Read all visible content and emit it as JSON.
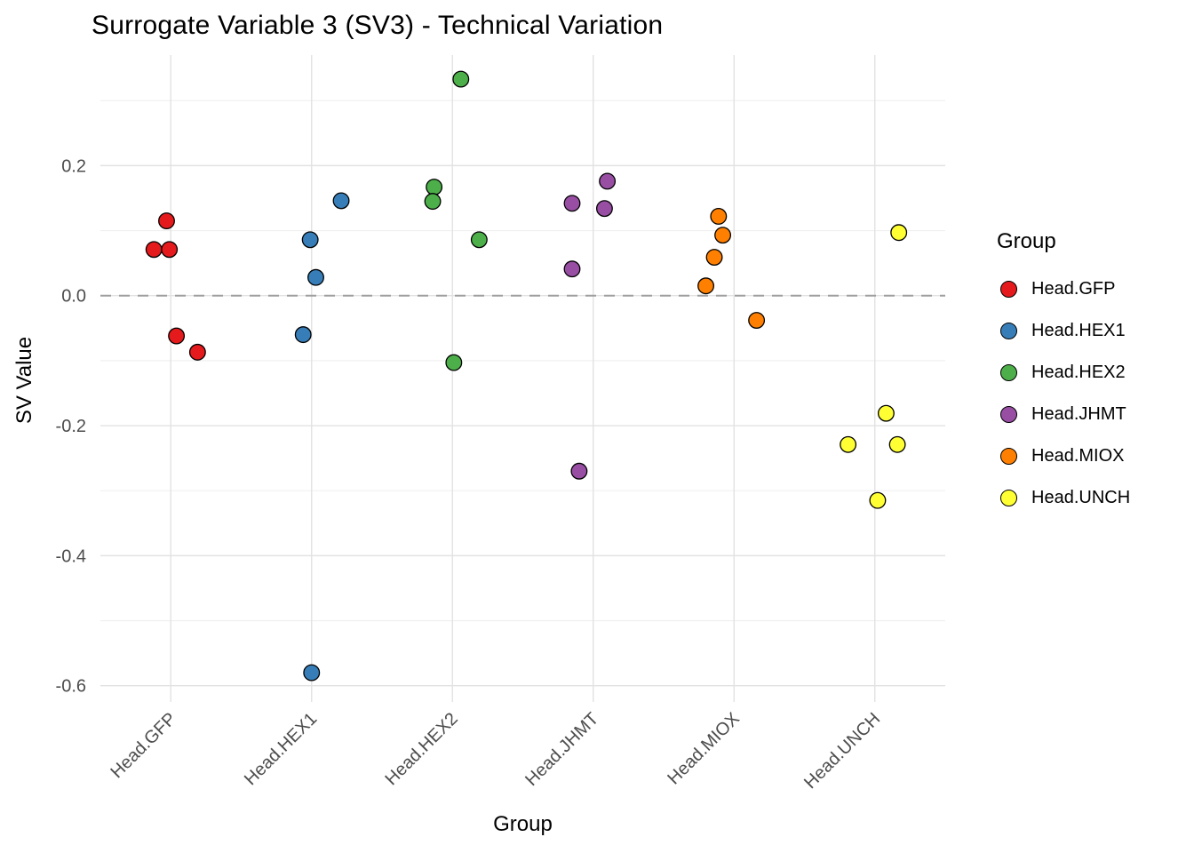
{
  "chart_data": {
    "type": "scatter",
    "title": "Surrogate Variable 3 (SV3) - Technical Variation",
    "xlabel": "Group",
    "ylabel": "SV Value",
    "legend_title": "Group",
    "legend_position": "right",
    "grid": true,
    "categories": [
      "Head.GFP",
      "Head.HEX1",
      "Head.HEX2",
      "Head.JHMT",
      "Head.MIOX",
      "Head.UNCH"
    ],
    "y_ticks": [
      0.2,
      0.0,
      -0.2,
      -0.4,
      -0.6
    ],
    "y_tick_labels": [
      "0.2",
      "0.0",
      "-0.2",
      "-0.4",
      "-0.6"
    ],
    "y_minor_ticks": [
      0.3,
      0.1,
      -0.1,
      -0.3,
      -0.5
    ],
    "ylim": [
      -0.625,
      0.37
    ],
    "reference_line_y": 0.0,
    "colors": {
      "grid_major": "#E2E2E2",
      "grid_minor": "#F0F0F0",
      "reference_line": "#9E9E9E",
      "tick_text": "#4D4D4D",
      "point_outline": "#000000"
    },
    "series": [
      {
        "name": "Head.GFP",
        "color": "#E41A1C",
        "points": [
          {
            "dx": -0.03,
            "y": 0.115
          },
          {
            "dx": -0.12,
            "y": 0.071
          },
          {
            "dx": -0.01,
            "y": 0.071
          },
          {
            "dx": 0.04,
            "y": -0.062
          },
          {
            "dx": 0.19,
            "y": -0.087
          }
        ]
      },
      {
        "name": "Head.HEX1",
        "color": "#377EB8",
        "points": [
          {
            "dx": 0.21,
            "y": 0.146
          },
          {
            "dx": -0.01,
            "y": 0.086
          },
          {
            "dx": 0.03,
            "y": 0.028
          },
          {
            "dx": -0.06,
            "y": -0.06
          },
          {
            "dx": 0.0,
            "y": -0.58
          }
        ]
      },
      {
        "name": "Head.HEX2",
        "color": "#4DAF4A",
        "points": [
          {
            "dx": 0.06,
            "y": 0.333
          },
          {
            "dx": -0.13,
            "y": 0.167
          },
          {
            "dx": -0.14,
            "y": 0.145
          },
          {
            "dx": 0.19,
            "y": 0.086
          },
          {
            "dx": 0.01,
            "y": -0.103
          }
        ]
      },
      {
        "name": "Head.JHMT",
        "color": "#984EA3",
        "points": [
          {
            "dx": 0.1,
            "y": 0.176
          },
          {
            "dx": -0.15,
            "y": 0.142
          },
          {
            "dx": 0.08,
            "y": 0.134
          },
          {
            "dx": -0.15,
            "y": 0.041
          },
          {
            "dx": -0.1,
            "y": -0.27
          }
        ]
      },
      {
        "name": "Head.MIOX",
        "color": "#FF7F00",
        "points": [
          {
            "dx": -0.11,
            "y": 0.122
          },
          {
            "dx": -0.08,
            "y": 0.093
          },
          {
            "dx": -0.14,
            "y": 0.059
          },
          {
            "dx": -0.2,
            "y": 0.015
          },
          {
            "dx": 0.16,
            "y": -0.038
          }
        ]
      },
      {
        "name": "Head.UNCH",
        "color": "#FFFF33",
        "points": [
          {
            "dx": 0.17,
            "y": 0.097
          },
          {
            "dx": 0.08,
            "y": -0.181
          },
          {
            "dx": -0.19,
            "y": -0.229
          },
          {
            "dx": 0.16,
            "y": -0.229
          },
          {
            "dx": 0.02,
            "y": -0.315
          }
        ]
      }
    ]
  }
}
